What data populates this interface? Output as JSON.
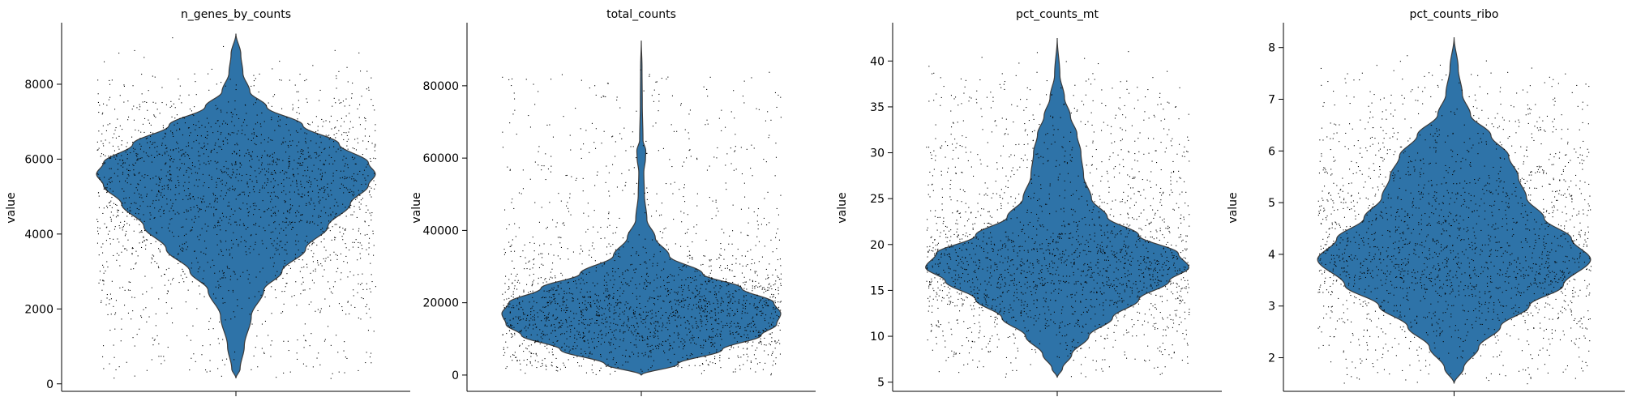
{
  "chart_data": [
    {
      "type": "violin",
      "title": "n_genes_by_counts",
      "ylabel": "value",
      "ylim": [
        -200,
        9600
      ],
      "yticks": [
        0,
        2000,
        4000,
        6000,
        8000
      ],
      "ytick_labels": [
        "0",
        "2000",
        "4000",
        "6000",
        "8000"
      ],
      "min": 150,
      "max": 9350,
      "mode": 5600,
      "density": [
        {
          "y": 150,
          "w": 0.0
        },
        {
          "y": 400,
          "w": 0.03
        },
        {
          "y": 1000,
          "w": 0.06
        },
        {
          "y": 1800,
          "w": 0.11
        },
        {
          "y": 2500,
          "w": 0.2
        },
        {
          "y": 3000,
          "w": 0.33
        },
        {
          "y": 3600,
          "w": 0.5
        },
        {
          "y": 4200,
          "w": 0.66
        },
        {
          "y": 4800,
          "w": 0.82
        },
        {
          "y": 5300,
          "w": 0.95
        },
        {
          "y": 5600,
          "w": 1.0
        },
        {
          "y": 5900,
          "w": 0.95
        },
        {
          "y": 6400,
          "w": 0.74
        },
        {
          "y": 6900,
          "w": 0.48
        },
        {
          "y": 7400,
          "w": 0.22
        },
        {
          "y": 7800,
          "w": 0.1
        },
        {
          "y": 8300,
          "w": 0.05
        },
        {
          "y": 8800,
          "w": 0.035
        },
        {
          "y": 9350,
          "w": 0.0
        }
      ]
    },
    {
      "type": "violin",
      "title": "total_counts",
      "ylabel": "value",
      "ylim": [
        -4500,
        97000
      ],
      "yticks": [
        0,
        20000,
        40000,
        60000,
        80000
      ],
      "ytick_labels": [
        "0",
        "20000",
        "40000",
        "60000",
        "80000"
      ],
      "min": 0,
      "max": 92500,
      "mode": 17000,
      "density": [
        {
          "y": 0,
          "w": 0.0
        },
        {
          "y": 3000,
          "w": 0.26
        },
        {
          "y": 7000,
          "w": 0.58
        },
        {
          "y": 11000,
          "w": 0.86
        },
        {
          "y": 14000,
          "w": 0.97
        },
        {
          "y": 17000,
          "w": 1.0
        },
        {
          "y": 20000,
          "w": 0.95
        },
        {
          "y": 24000,
          "w": 0.72
        },
        {
          "y": 28000,
          "w": 0.44
        },
        {
          "y": 33000,
          "w": 0.2
        },
        {
          "y": 38000,
          "w": 0.1
        },
        {
          "y": 43000,
          "w": 0.04
        },
        {
          "y": 50000,
          "w": 0.022
        },
        {
          "y": 56000,
          "w": 0.018
        },
        {
          "y": 60000,
          "w": 0.03
        },
        {
          "y": 62000,
          "w": 0.032
        },
        {
          "y": 65000,
          "w": 0.012
        },
        {
          "y": 75000,
          "w": 0.007
        },
        {
          "y": 85000,
          "w": 0.005
        },
        {
          "y": 92500,
          "w": 0.0
        }
      ]
    },
    {
      "type": "violin",
      "title": "pct_counts_mt",
      "ylabel": "value",
      "ylim": [
        4,
        44
      ],
      "yticks": [
        5,
        10,
        15,
        20,
        25,
        30,
        35,
        40
      ],
      "ytick_labels": [
        "5",
        "10",
        "15",
        "20",
        "25",
        "30",
        "35",
        "40"
      ],
      "min": 5.5,
      "max": 42.5,
      "mode": 17.5,
      "density": [
        {
          "y": 5.5,
          "w": 0.0
        },
        {
          "y": 6.5,
          "w": 0.04
        },
        {
          "y": 8.0,
          "w": 0.11
        },
        {
          "y": 10.0,
          "w": 0.24
        },
        {
          "y": 12.0,
          "w": 0.42
        },
        {
          "y": 14.0,
          "w": 0.62
        },
        {
          "y": 16.0,
          "w": 0.85
        },
        {
          "y": 17.5,
          "w": 1.0
        },
        {
          "y": 19.0,
          "w": 0.92
        },
        {
          "y": 21.0,
          "w": 0.62
        },
        {
          "y": 23.0,
          "w": 0.38
        },
        {
          "y": 25.0,
          "w": 0.26
        },
        {
          "y": 27.5,
          "w": 0.2
        },
        {
          "y": 30.0,
          "w": 0.18
        },
        {
          "y": 32.0,
          "w": 0.15
        },
        {
          "y": 34.0,
          "w": 0.1
        },
        {
          "y": 36.0,
          "w": 0.055
        },
        {
          "y": 38.5,
          "w": 0.02
        },
        {
          "y": 42.5,
          "w": 0.0
        }
      ]
    },
    {
      "type": "violin",
      "title": "pct_counts_ribo",
      "ylabel": "value",
      "ylim": [
        1.35,
        8.45
      ],
      "yticks": [
        2,
        3,
        4,
        5,
        6,
        7,
        8
      ],
      "ytick_labels": [
        "2",
        "3",
        "4",
        "5",
        "6",
        "7",
        "8"
      ],
      "min": 1.5,
      "max": 8.2,
      "mode": 3.9,
      "density": [
        {
          "y": 1.5,
          "w": 0.0
        },
        {
          "y": 1.8,
          "w": 0.07
        },
        {
          "y": 2.2,
          "w": 0.18
        },
        {
          "y": 2.6,
          "w": 0.34
        },
        {
          "y": 3.0,
          "w": 0.55
        },
        {
          "y": 3.4,
          "w": 0.8
        },
        {
          "y": 3.9,
          "w": 1.0
        },
        {
          "y": 4.3,
          "w": 0.86
        },
        {
          "y": 4.7,
          "w": 0.66
        },
        {
          "y": 5.1,
          "w": 0.53
        },
        {
          "y": 5.5,
          "w": 0.47
        },
        {
          "y": 5.9,
          "w": 0.4
        },
        {
          "y": 6.3,
          "w": 0.27
        },
        {
          "y": 6.7,
          "w": 0.12
        },
        {
          "y": 7.1,
          "w": 0.06
        },
        {
          "y": 7.6,
          "w": 0.03
        },
        {
          "y": 8.2,
          "w": 0.0
        }
      ]
    }
  ]
}
